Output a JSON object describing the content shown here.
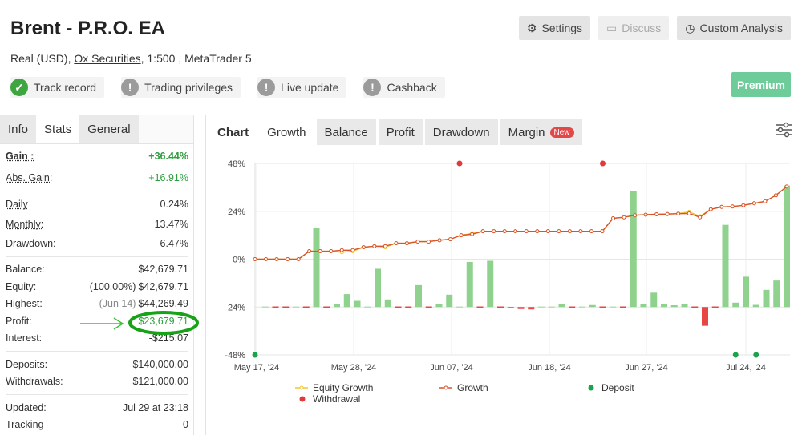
{
  "header": {
    "title": "Brent - P.R.O. EA",
    "account_type": "Real (USD), ",
    "broker": "Ox Securities",
    "details": ", 1:500 , MetaTrader 5"
  },
  "badges": [
    {
      "label": "Track record",
      "status": "ok",
      "icon": "check-icon"
    },
    {
      "label": "Trading privileges",
      "status": "warn",
      "icon": "exclamation-icon"
    },
    {
      "label": "Live update",
      "status": "warn",
      "icon": "exclamation-icon"
    },
    {
      "label": "Cashback",
      "status": "warn",
      "icon": "exclamation-icon"
    }
  ],
  "buttons": {
    "settings": "Settings",
    "discuss": "Discuss",
    "custom_analysis": "Custom Analysis",
    "premium": "Premium"
  },
  "left_tabs": [
    "Info",
    "Stats",
    "General"
  ],
  "stats": {
    "gain": {
      "label": "Gain :",
      "value": "+36.44%"
    },
    "abs_gain": {
      "label": "Abs. Gain:",
      "value": "+16.91%"
    },
    "daily": {
      "label": "Daily",
      "value": "0.24%"
    },
    "monthly": {
      "label": "Monthly:",
      "value": "13.47%"
    },
    "drawdown": {
      "label": "Drawdown:",
      "value": "6.47%"
    },
    "balance": {
      "label": "Balance:",
      "value": "$42,679.71"
    },
    "equity": {
      "label": "Equity:",
      "note": "(100.00%)",
      "value": "$42,679.71"
    },
    "highest": {
      "label": "Highest:",
      "note": "(Jun 14)",
      "value": "$44,269.49"
    },
    "profit": {
      "label": "Profit:",
      "value": "$23,679.71"
    },
    "interest": {
      "label": "Interest:",
      "value": "-$215.07"
    },
    "deposits": {
      "label": "Deposits:",
      "value": "$140,000.00"
    },
    "withdrawals": {
      "label": "Withdrawals:",
      "value": "$121,000.00"
    },
    "updated": {
      "label": "Updated:",
      "value": "Jul 29 at 23:18"
    },
    "tracking": {
      "label": "Tracking",
      "value": "0"
    }
  },
  "chart_tabs": {
    "head": "Chart",
    "tabs": [
      "Growth",
      "Balance",
      "Profit",
      "Drawdown",
      "Margin"
    ],
    "new_badge": "New"
  },
  "colors": {
    "bar_positive": "#8ed28e",
    "bar_negative": "#e84545",
    "growth_line": "#d9532c",
    "equity_line": "#f4c430",
    "deposit": "#1aa34a",
    "withdrawal": "#e03a3a",
    "premium": "#6ecb9a"
  },
  "chart_data": {
    "type": "bar",
    "ylim": [
      -48,
      48
    ],
    "yticks": [
      "48%",
      "24%",
      "0%",
      "-24%",
      "-48%"
    ],
    "xticks": [
      "May 17, '24",
      "May 28, '24",
      "Jun 07, '24",
      "Jun 18, '24",
      "Jun 27, '24",
      "Jul 24, '24"
    ],
    "legend": [
      "Equity Growth",
      "Growth",
      "Deposit",
      "Withdrawal"
    ],
    "bars": [
      0,
      -23.5,
      -24.4,
      -24.4,
      -23.5,
      -24.4,
      15.6,
      -24.5,
      -22.6,
      -17.5,
      -20.9,
      -23.7,
      -4.8,
      -20.2,
      -24.4,
      -24.1,
      -13.0,
      -24.4,
      -22.7,
      -17.8,
      -24.0,
      -1.4,
      -24.4,
      -0.8,
      -24.2,
      -24.7,
      -25.0,
      -25.2,
      -23.9,
      -24.0,
      -22.6,
      -24.3,
      -24.0,
      -23.0,
      -24.2,
      -23.4,
      -24.3,
      34.1,
      -22.3,
      -16.8,
      -22.4,
      -23.1,
      -22.4,
      -24.2,
      -33.4,
      -24.2,
      17.2,
      -21.8,
      -8.8,
      -22.9,
      -15.4,
      -10.7,
      36.9
    ],
    "growth": [
      0,
      0,
      0,
      0,
      0,
      4.0,
      4.0,
      4.0,
      4.5,
      4.5,
      6.0,
      6.5,
      6.5,
      8.0,
      8.0,
      8.8,
      8.8,
      9.5,
      10.0,
      12.0,
      12.5,
      14.0,
      14.0,
      14.0,
      14.0,
      14.0,
      14.0,
      14.0,
      14.0,
      14.0,
      14.0,
      14.0,
      14.0,
      20.5,
      21.0,
      22.0,
      22.3,
      22.5,
      22.6,
      22.8,
      22.9,
      21.0,
      25.0,
      26.2,
      26.4,
      27.0,
      28.0,
      29.0,
      32.0,
      36.4
    ],
    "equity_growth": [
      0,
      0,
      0,
      0,
      0,
      4.0,
      4.0,
      4.0,
      3.5,
      4.0,
      6.0,
      6.5,
      6.0,
      8.0,
      8.0,
      8.8,
      8.8,
      9.5,
      10.0,
      12.0,
      13.0,
      14.0,
      14.0,
      14.0,
      14.0,
      14.0,
      14.0,
      14.0,
      14.0,
      14.0,
      14.0,
      14.0,
      14.0,
      20.5,
      21.0,
      22.0,
      22.3,
      22.5,
      22.6,
      22.8,
      23.7,
      21.5,
      25.0,
      26.2,
      26.4,
      27.0,
      28.0,
      29.0,
      32.0,
      36.4
    ],
    "deposits_at": [
      0,
      47,
      49
    ],
    "withdrawals_at": [
      20,
      34
    ]
  }
}
